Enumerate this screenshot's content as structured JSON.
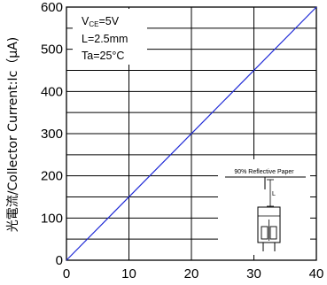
{
  "chart_data": {
    "type": "line",
    "ylabel": "光電流/Collector Current:Ic（μA)",
    "xlim": [
      0,
      40
    ],
    "ylim": [
      0,
      600
    ],
    "x_ticks": [
      0,
      10,
      20,
      30,
      40
    ],
    "y_ticks": [
      0,
      100,
      200,
      300,
      400,
      500,
      600
    ],
    "grid": true,
    "series": [
      {
        "x": [
          0,
          40
        ],
        "y": [
          0,
          600
        ],
        "color": "#1f2ad6"
      }
    ],
    "conditions": {
      "line1_main": "V",
      "line1_sub": "CE",
      "line1_rest": "=5V",
      "line2": "L=2.5mm",
      "line3": "Ta=25°C"
    },
    "inset": {
      "label": "90% Reflective Paper",
      "l_label": "L"
    }
  }
}
